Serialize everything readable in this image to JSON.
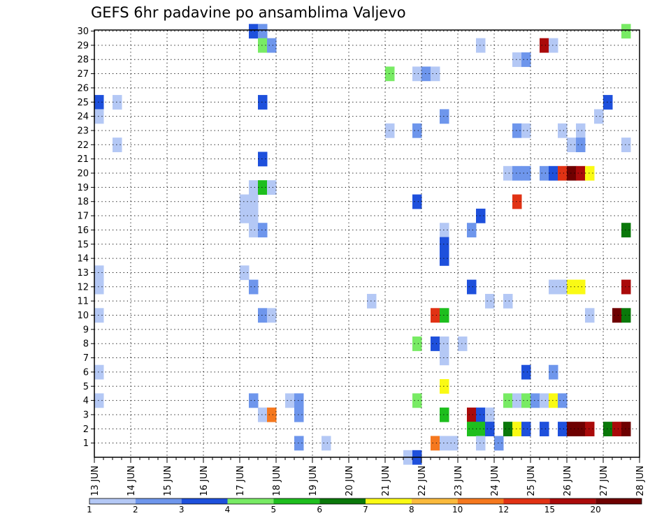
{
  "chart_data": {
    "type": "heatmap",
    "title": "GEFS 6hr padavine po ansamblima Valjevo",
    "x_tick_labels": [
      "13 JUN",
      "14 JUN",
      "15 JUN",
      "16 JUN",
      "17 JUN",
      "18 JUN",
      "19 JUN",
      "20 JUN",
      "21 JUN",
      "22 JUN",
      "23 JUN",
      "24 JUN",
      "25 JUN",
      "26 JUN",
      "27 JUN",
      "28 JUN"
    ],
    "y_range": [
      1,
      30
    ],
    "grid": true,
    "legend_placement": "bottom",
    "legend": {
      "labels": [
        "1",
        "2",
        "3",
        "4",
        "5",
        "6",
        "7",
        "8",
        "10",
        "12",
        "15",
        "20"
      ],
      "colors": [
        "#b4c8f5",
        "#6e96ec",
        "#1e50dc",
        "#78eb64",
        "#1ebe1e",
        "#0a780a",
        "#fafa14",
        "#faba3c",
        "#f5781e",
        "#e13214",
        "#aa0a0a",
        "#6e0000"
      ]
    },
    "cells_note": "x = day index from 13 JUN (0) at 6-hour steps, y = ensemble member, level = legend index 0-11",
    "cells": [
      [
        0.0,
        25,
        2
      ],
      [
        0.0,
        24,
        0
      ],
      [
        0.0,
        12,
        0
      ],
      [
        0.0,
        10,
        0
      ],
      [
        0.0,
        6,
        0
      ],
      [
        0.0,
        4,
        0
      ],
      [
        0.0,
        13,
        0
      ],
      [
        0.5,
        25,
        0
      ],
      [
        0.5,
        22,
        0
      ],
      [
        4.0,
        13,
        0
      ],
      [
        4.0,
        17,
        0
      ],
      [
        4.0,
        18,
        0
      ],
      [
        4.25,
        30,
        2
      ],
      [
        4.25,
        19,
        0
      ],
      [
        4.25,
        16,
        0
      ],
      [
        4.25,
        17,
        0
      ],
      [
        4.25,
        18,
        0
      ],
      [
        4.25,
        12,
        1
      ],
      [
        4.25,
        4,
        1
      ],
      [
        4.5,
        30,
        1
      ],
      [
        4.5,
        29,
        3
      ],
      [
        4.5,
        25,
        2
      ],
      [
        4.5,
        21,
        2
      ],
      [
        4.5,
        19,
        4
      ],
      [
        4.5,
        16,
        1
      ],
      [
        4.5,
        10,
        1
      ],
      [
        4.5,
        3,
        0
      ],
      [
        4.75,
        29,
        1
      ],
      [
        4.75,
        19,
        0
      ],
      [
        4.75,
        10,
        0
      ],
      [
        4.75,
        3,
        8
      ],
      [
        5.25,
        4,
        0
      ],
      [
        5.5,
        4,
        1
      ],
      [
        5.5,
        3,
        1
      ],
      [
        5.5,
        1,
        1
      ],
      [
        6.25,
        1,
        0
      ],
      [
        7.5,
        11,
        0
      ],
      [
        8.0,
        27,
        3
      ],
      [
        8.0,
        23,
        0
      ],
      [
        8.5,
        0,
        0
      ],
      [
        8.75,
        27,
        0
      ],
      [
        8.75,
        23,
        1
      ],
      [
        8.75,
        18,
        2
      ],
      [
        8.75,
        8,
        3
      ],
      [
        8.75,
        4,
        3
      ],
      [
        8.75,
        0,
        2
      ],
      [
        9.0,
        27,
        1
      ],
      [
        9.25,
        27,
        0
      ],
      [
        9.25,
        10,
        9
      ],
      [
        9.25,
        8,
        2
      ],
      [
        9.25,
        1,
        8
      ],
      [
        9.5,
        24,
        1
      ],
      [
        9.5,
        16,
        0
      ],
      [
        9.5,
        15,
        2
      ],
      [
        9.5,
        14,
        2
      ],
      [
        9.5,
        10,
        4
      ],
      [
        9.5,
        8,
        0
      ],
      [
        9.5,
        7,
        0
      ],
      [
        9.5,
        5,
        6
      ],
      [
        9.5,
        3,
        4
      ],
      [
        9.5,
        1,
        0
      ],
      [
        9.75,
        1,
        0
      ],
      [
        10.0,
        8,
        0
      ],
      [
        10.25,
        16,
        1
      ],
      [
        10.25,
        12,
        2
      ],
      [
        10.25,
        3,
        10
      ],
      [
        10.25,
        2,
        4
      ],
      [
        10.5,
        29,
        0
      ],
      [
        10.5,
        17,
        2
      ],
      [
        10.5,
        3,
        2
      ],
      [
        10.5,
        2,
        4
      ],
      [
        10.5,
        1,
        0
      ],
      [
        10.75,
        11,
        0
      ],
      [
        10.75,
        3,
        0
      ],
      [
        10.75,
        2,
        2
      ],
      [
        11.0,
        1,
        1
      ],
      [
        11.25,
        20,
        0
      ],
      [
        11.25,
        11,
        0
      ],
      [
        11.25,
        4,
        3
      ],
      [
        11.25,
        2,
        5
      ],
      [
        11.5,
        28,
        0
      ],
      [
        11.5,
        23,
        1
      ],
      [
        11.5,
        20,
        1
      ],
      [
        11.5,
        18,
        9
      ],
      [
        11.5,
        4,
        0
      ],
      [
        11.5,
        2,
        6
      ],
      [
        11.75,
        28,
        1
      ],
      [
        11.75,
        23,
        0
      ],
      [
        11.75,
        20,
        1
      ],
      [
        11.75,
        6,
        2
      ],
      [
        11.75,
        4,
        3
      ],
      [
        11.75,
        2,
        2
      ],
      [
        12.0,
        4,
        1
      ],
      [
        12.25,
        29,
        10
      ],
      [
        12.25,
        20,
        1
      ],
      [
        12.25,
        4,
        0
      ],
      [
        12.25,
        2,
        2
      ],
      [
        12.5,
        29,
        0
      ],
      [
        12.5,
        20,
        2
      ],
      [
        12.5,
        12,
        0
      ],
      [
        12.5,
        6,
        1
      ],
      [
        12.5,
        4,
        6
      ],
      [
        12.75,
        23,
        0
      ],
      [
        12.75,
        20,
        9
      ],
      [
        12.75,
        12,
        0
      ],
      [
        12.75,
        4,
        1
      ],
      [
        12.75,
        2,
        2
      ],
      [
        13.0,
        22,
        0
      ],
      [
        13.0,
        20,
        11
      ],
      [
        13.0,
        12,
        6
      ],
      [
        13.0,
        2,
        11
      ],
      [
        13.25,
        23,
        0
      ],
      [
        13.25,
        22,
        1
      ],
      [
        13.25,
        20,
        10
      ],
      [
        13.25,
        12,
        6
      ],
      [
        13.25,
        2,
        11
      ],
      [
        13.5,
        20,
        6
      ],
      [
        13.5,
        10,
        0
      ],
      [
        13.5,
        2,
        10
      ],
      [
        13.75,
        24,
        0
      ],
      [
        14.0,
        25,
        2
      ],
      [
        14.0,
        2,
        5
      ],
      [
        14.25,
        10,
        11
      ],
      [
        14.25,
        2,
        10
      ],
      [
        14.5,
        30,
        3
      ],
      [
        14.5,
        22,
        0
      ],
      [
        14.5,
        16,
        5
      ],
      [
        14.5,
        12,
        10
      ],
      [
        14.5,
        10,
        5
      ],
      [
        14.5,
        2,
        11
      ]
    ]
  }
}
